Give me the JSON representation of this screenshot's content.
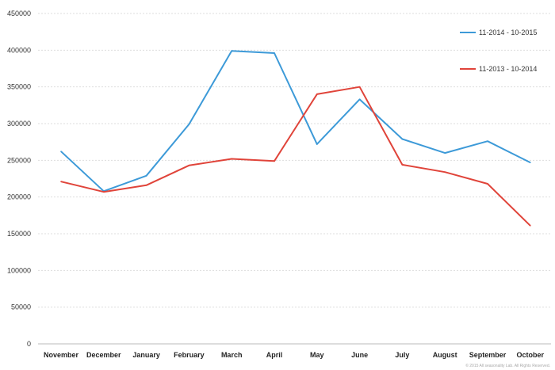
{
  "chart_data": {
    "type": "line",
    "categories": [
      "November",
      "December",
      "January",
      "February",
      "March",
      "April",
      "May",
      "June",
      "July",
      "August",
      "September",
      "October"
    ],
    "series": [
      {
        "name": "11-2014 - 10-2015",
        "color": "#3d9ad8",
        "values": [
          262000,
          208000,
          229000,
          299000,
          399000,
          396000,
          272000,
          333000,
          279000,
          260000,
          276000,
          247000
        ]
      },
      {
        "name": "11-2013 - 10-2014",
        "color": "#e0443a",
        "values": [
          221000,
          207000,
          216000,
          243000,
          252000,
          249000,
          340000,
          350000,
          244000,
          234000,
          218000,
          161000
        ]
      }
    ],
    "yticks": [
      "0",
      "50000",
      "100000",
      "150000",
      "200000",
      "250000",
      "300000",
      "350000",
      "400000",
      "450000"
    ],
    "ylim": [
      0,
      450000
    ],
    "grid": true,
    "legend_position": "top-right"
  },
  "footer": {
    "copyright": "© 2015 All seasonality Lab. All Rights Reserved."
  }
}
